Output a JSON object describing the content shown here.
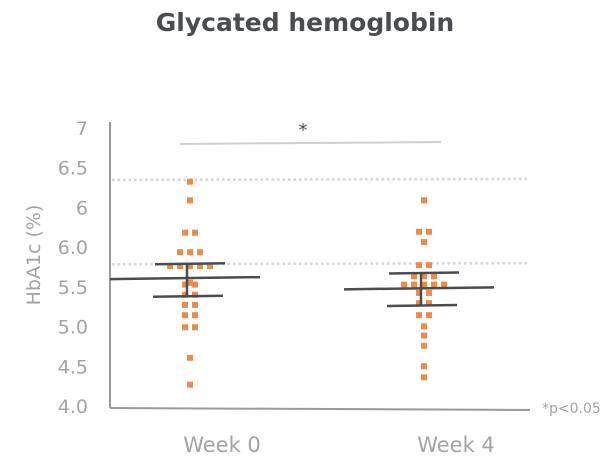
{
  "chart_data": {
    "type": "scatter",
    "title": "Glycated hemoglobin",
    "ylabel": "HbA1c (%)",
    "xlabel": "",
    "categories": [
      "Week 0",
      "Week 4"
    ],
    "y_tick_labels": [
      "7",
      "6.5",
      "6",
      "6.0",
      "5.5",
      "5.0",
      "4.5",
      "4.0"
    ],
    "ylim": [
      4.0,
      7.0
    ],
    "grid": false,
    "point_color": "#ee8a4a",
    "line_color": "#4a4d50",
    "reference_lines": [
      6.44,
      5.53
    ],
    "series": [
      {
        "category": "Week 0",
        "values": [
          6.42,
          6.22,
          5.87,
          5.87,
          5.66,
          5.66,
          5.66,
          5.51,
          5.51,
          5.51,
          5.51,
          5.51,
          5.33,
          5.31,
          5.31,
          5.2,
          5.2,
          5.09,
          5.09,
          4.98,
          4.98,
          4.85,
          4.85,
          4.52,
          4.23
        ],
        "mean": 5.38,
        "error_upper": 5.53,
        "error_lower": 5.19
      },
      {
        "category": "Week 4",
        "values": [
          6.22,
          5.88,
          5.88,
          5.77,
          5.52,
          5.52,
          5.4,
          5.4,
          5.4,
          5.31,
          5.31,
          5.31,
          5.31,
          5.31,
          5.22,
          5.22,
          5.11,
          5.11,
          4.98,
          4.98,
          4.86,
          4.76,
          4.65,
          4.43,
          4.31
        ],
        "mean": 5.27,
        "error_upper": 5.43,
        "error_lower": 5.09
      }
    ],
    "significance": {
      "label": "*",
      "between": [
        "Week 0",
        "Week 4"
      ]
    },
    "annotation": "*p<0.05"
  }
}
